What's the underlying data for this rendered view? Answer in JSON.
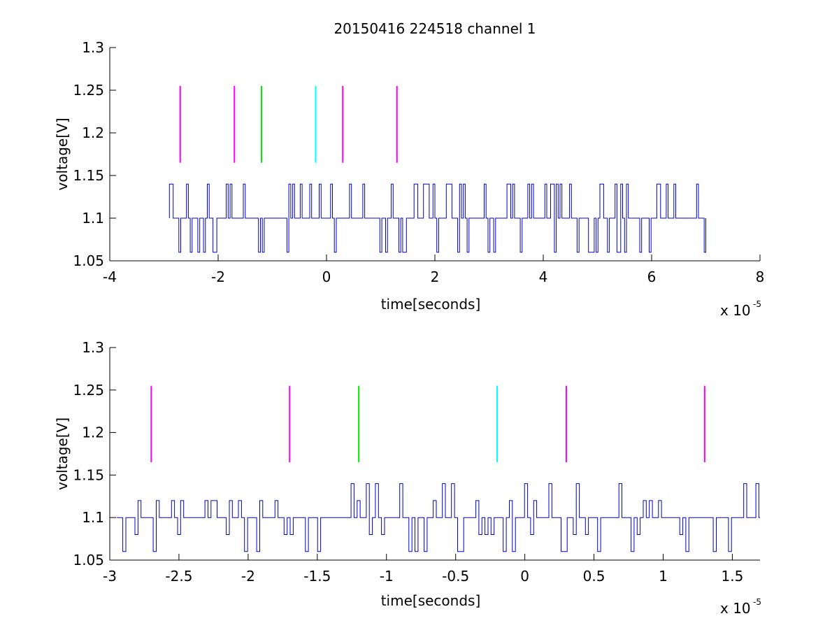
{
  "title": "20150416 224518 channel 1",
  "colors": {
    "signal": "#0000cc",
    "marker_magenta": "#ff00ff",
    "marker_green": "#00ee00",
    "marker_cyan": "#00ffff",
    "axes": "#000000",
    "background": "#ffffff"
  },
  "chart_data": [
    {
      "type": "line",
      "title": "20150416 224518 channel 1",
      "xlabel": "time[seconds]",
      "ylabel": "voltage[V]",
      "x_multiplier_text": "x 10",
      "x_multiplier_exponent": "-5",
      "xlim": [
        -4,
        8
      ],
      "ylim": [
        1.05,
        1.3
      ],
      "xticks": [
        -4,
        -2,
        0,
        2,
        4,
        6,
        8
      ],
      "xtick_labels": [
        "-4",
        "-2",
        "0",
        "2",
        "4",
        "6",
        "8"
      ],
      "yticks": [
        1.05,
        1.1,
        1.15,
        1.2,
        1.25,
        1.3
      ],
      "ytick_labels": [
        "1.05",
        "1.1",
        "1.15",
        "1.2",
        "1.25",
        "1.3"
      ],
      "grid": false,
      "series": [
        {
          "kind": "digitized-voltage-trace",
          "color": "#0000cc",
          "x_range": [
            -2.9,
            7.0
          ],
          "baseline": 1.1,
          "levels": [
            1.06,
            1.1,
            1.14
          ],
          "dense_region": [
            1.7,
            7.0
          ]
        }
      ],
      "markers": [
        {
          "x": -2.7,
          "y_range": [
            1.165,
            1.255
          ],
          "color": "#ff00ff"
        },
        {
          "x": -1.7,
          "y_range": [
            1.165,
            1.255
          ],
          "color": "#ff00ff"
        },
        {
          "x": -1.2,
          "y_range": [
            1.165,
            1.255
          ],
          "color": "#00ee00"
        },
        {
          "x": -0.2,
          "y_range": [
            1.165,
            1.255
          ],
          "color": "#00ffff"
        },
        {
          "x": 0.3,
          "y_range": [
            1.165,
            1.255
          ],
          "color": "#ff00ff"
        },
        {
          "x": 1.3,
          "y_range": [
            1.165,
            1.255
          ],
          "color": "#ff00ff"
        }
      ]
    },
    {
      "type": "line",
      "title": "",
      "xlabel": "time[seconds]",
      "ylabel": "voltage[V]",
      "x_multiplier_text": "x 10",
      "x_multiplier_exponent": "-5",
      "xlim": [
        -3,
        1.7
      ],
      "ylim": [
        1.05,
        1.3
      ],
      "xticks": [
        -3,
        -2.5,
        -2,
        -1.5,
        -1,
        -0.5,
        0,
        0.5,
        1,
        1.5
      ],
      "xtick_labels": [
        "-3",
        "-2.5",
        "-2",
        "-1.5",
        "-1",
        "-0.5",
        "0",
        "0.5",
        "1",
        "1.5"
      ],
      "yticks": [
        1.05,
        1.1,
        1.15,
        1.2,
        1.25,
        1.3
      ],
      "ytick_labels": [
        "1.05",
        "1.1",
        "1.15",
        "1.2",
        "1.25",
        "1.3"
      ],
      "grid": false,
      "series": [
        {
          "kind": "digitized-voltage-trace",
          "color": "#0000cc",
          "x_range": [
            -2.95,
            1.7
          ],
          "baseline": 1.1,
          "levels": [
            1.06,
            1.08,
            1.1,
            1.12,
            1.14
          ]
        }
      ],
      "markers": [
        {
          "x": -2.7,
          "y_range": [
            1.165,
            1.255
          ],
          "color": "#ff00ff"
        },
        {
          "x": -1.7,
          "y_range": [
            1.165,
            1.255
          ],
          "color": "#ff00ff"
        },
        {
          "x": -1.2,
          "y_range": [
            1.165,
            1.255
          ],
          "color": "#00ee00"
        },
        {
          "x": -0.2,
          "y_range": [
            1.165,
            1.255
          ],
          "color": "#00ffff"
        },
        {
          "x": 0.3,
          "y_range": [
            1.165,
            1.255
          ],
          "color": "#ff00ff"
        },
        {
          "x": 1.3,
          "y_range": [
            1.165,
            1.255
          ],
          "color": "#ff00ff"
        }
      ]
    }
  ]
}
